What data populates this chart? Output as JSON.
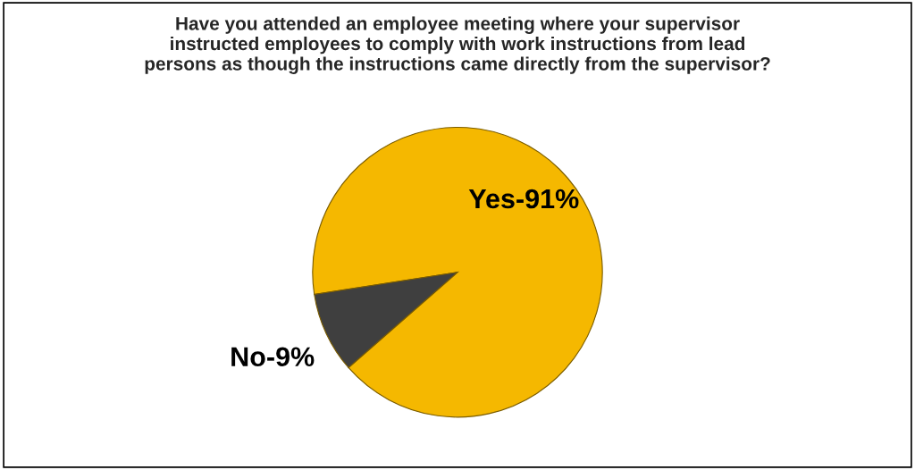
{
  "chart_data": {
    "type": "pie",
    "title": "Have you attended an employee meeting where your supervisor\ninstructed employees to comply with work instructions from lead\npersons as though the instructions came directly from the supervisor?",
    "categories": [
      "Yes-91%",
      "No-9%"
    ],
    "values": [
      91,
      9
    ],
    "colors": [
      "#f5b800",
      "#3f3f3f"
    ],
    "legend": false
  }
}
